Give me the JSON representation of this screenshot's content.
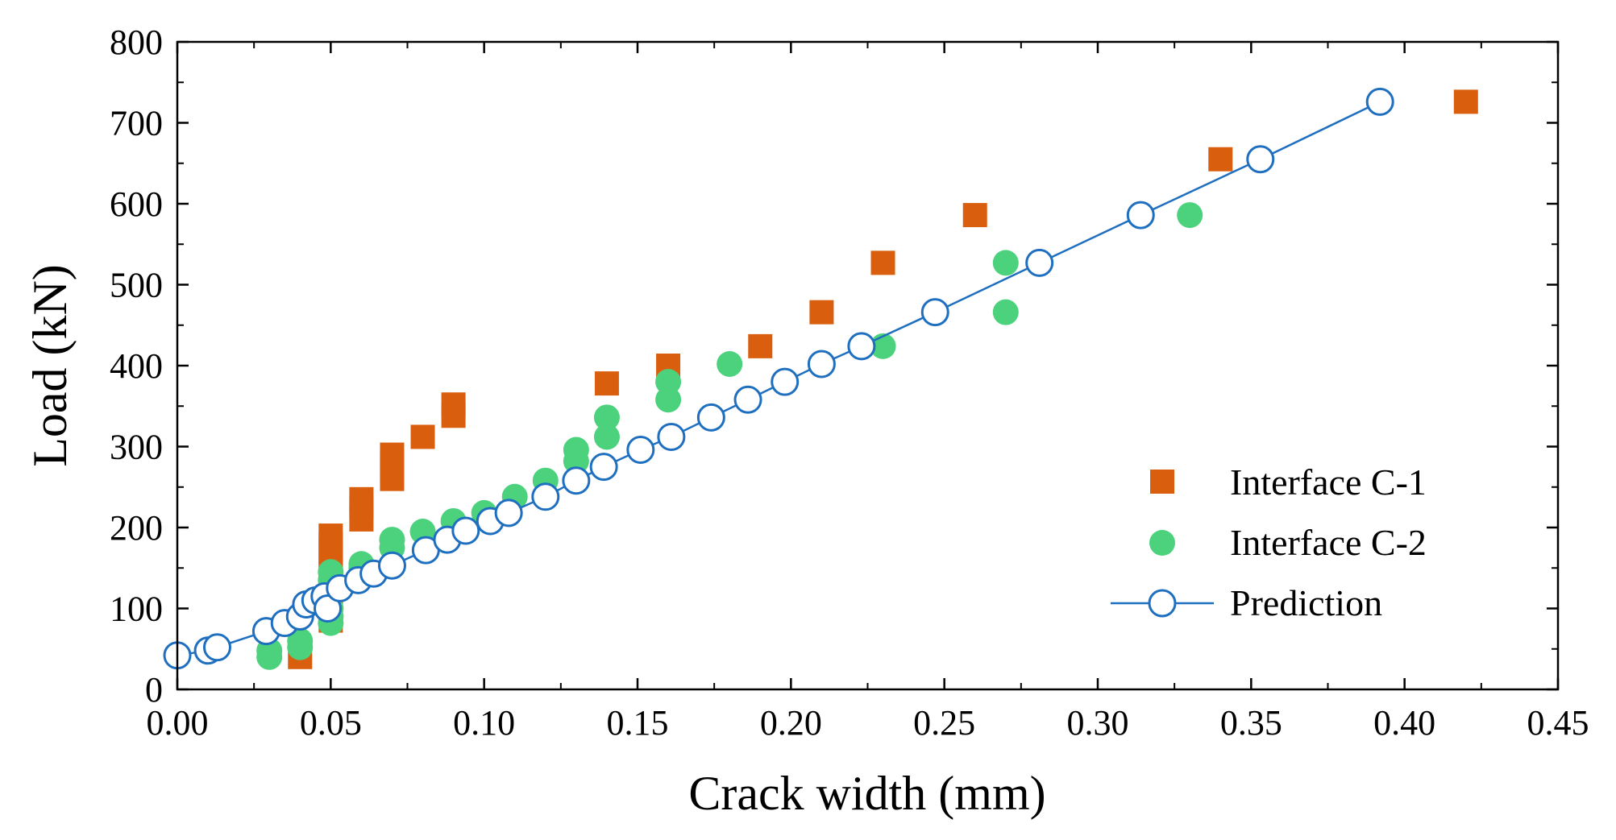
{
  "chart_data": {
    "type": "scatter",
    "title": "",
    "xlabel": "Crack width (mm)",
    "ylabel": "Load (kN)",
    "xlim": [
      0,
      0.45
    ],
    "ylim": [
      0,
      800
    ],
    "x_ticks": [
      0,
      0.05,
      0.1,
      0.15,
      0.2,
      0.25,
      0.3,
      0.35,
      0.4,
      0.45
    ],
    "x_tick_labels": [
      "0.00",
      "0.05",
      "0.10",
      "0.15",
      "0.20",
      "0.25",
      "0.30",
      "0.35",
      "0.40",
      "0.45"
    ],
    "y_ticks": [
      0,
      100,
      200,
      300,
      400,
      500,
      600,
      700,
      800
    ],
    "y_tick_labels": [
      "0",
      "100",
      "200",
      "300",
      "400",
      "500",
      "600",
      "700",
      "800"
    ],
    "grid": false,
    "legend_position": "center-right",
    "series": [
      {
        "name": "Interface C-1",
        "marker": "square",
        "line": false,
        "color": "#D95F0E",
        "points": [
          [
            0.04,
            40
          ],
          [
            0.05,
            85
          ],
          [
            0.05,
            100
          ],
          [
            0.05,
            110
          ],
          [
            0.05,
            120
          ],
          [
            0.05,
            135
          ],
          [
            0.05,
            150
          ],
          [
            0.05,
            160
          ],
          [
            0.05,
            170
          ],
          [
            0.05,
            180
          ],
          [
            0.05,
            190
          ],
          [
            0.06,
            210
          ],
          [
            0.06,
            225
          ],
          [
            0.06,
            235
          ],
          [
            0.07,
            260
          ],
          [
            0.07,
            270
          ],
          [
            0.07,
            280
          ],
          [
            0.07,
            290
          ],
          [
            0.08,
            312
          ],
          [
            0.09,
            338
          ],
          [
            0.09,
            352
          ],
          [
            0.14,
            378
          ],
          [
            0.16,
            400
          ],
          [
            0.19,
            424
          ],
          [
            0.21,
            466
          ],
          [
            0.23,
            527
          ],
          [
            0.26,
            586
          ],
          [
            0.34,
            655
          ],
          [
            0.42,
            726
          ]
        ]
      },
      {
        "name": "Interface C-2",
        "marker": "circle",
        "line": false,
        "color": "#4CD17D",
        "points": [
          [
            0.03,
            40
          ],
          [
            0.03,
            48
          ],
          [
            0.04,
            52
          ],
          [
            0.04,
            60
          ],
          [
            0.05,
            82
          ],
          [
            0.05,
            90
          ],
          [
            0.05,
            100
          ],
          [
            0.05,
            135
          ],
          [
            0.05,
            145
          ],
          [
            0.06,
            150
          ],
          [
            0.06,
            155
          ],
          [
            0.07,
            175
          ],
          [
            0.07,
            185
          ],
          [
            0.08,
            195
          ],
          [
            0.09,
            208
          ],
          [
            0.1,
            218
          ],
          [
            0.11,
            238
          ],
          [
            0.12,
            258
          ],
          [
            0.13,
            282
          ],
          [
            0.13,
            296
          ],
          [
            0.14,
            312
          ],
          [
            0.14,
            336
          ],
          [
            0.16,
            358
          ],
          [
            0.16,
            380
          ],
          [
            0.18,
            402
          ],
          [
            0.23,
            424
          ],
          [
            0.27,
            466
          ],
          [
            0.27,
            527
          ],
          [
            0.33,
            586
          ]
        ]
      },
      {
        "name": "Prediction",
        "marker": "open-circle",
        "line": true,
        "color": "#1F6FC0",
        "points": [
          [
            0.0,
            42
          ],
          [
            0.01,
            48
          ],
          [
            0.013,
            52
          ],
          [
            0.029,
            72
          ],
          [
            0.035,
            82
          ],
          [
            0.04,
            90
          ],
          [
            0.042,
            105
          ],
          [
            0.045,
            110
          ],
          [
            0.048,
            115
          ],
          [
            0.049,
            100
          ],
          [
            0.053,
            125
          ],
          [
            0.059,
            135
          ],
          [
            0.064,
            143
          ],
          [
            0.07,
            153
          ],
          [
            0.081,
            172
          ],
          [
            0.088,
            185
          ],
          [
            0.094,
            196
          ],
          [
            0.102,
            208
          ],
          [
            0.108,
            218
          ],
          [
            0.12,
            238
          ],
          [
            0.13,
            258
          ],
          [
            0.139,
            275
          ],
          [
            0.151,
            296
          ],
          [
            0.161,
            312
          ],
          [
            0.174,
            336
          ],
          [
            0.186,
            358
          ],
          [
            0.198,
            380
          ],
          [
            0.21,
            402
          ],
          [
            0.223,
            424
          ],
          [
            0.247,
            466
          ],
          [
            0.281,
            527
          ],
          [
            0.314,
            586
          ],
          [
            0.353,
            655
          ],
          [
            0.392,
            726
          ]
        ]
      }
    ]
  }
}
